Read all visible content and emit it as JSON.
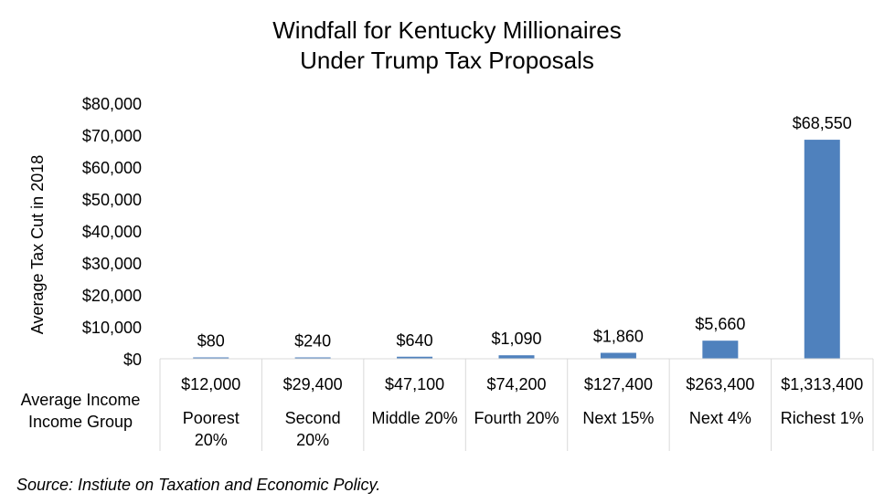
{
  "chart_data": {
    "type": "bar",
    "title": [
      "Windfall for Kentucky Millionaires",
      "Under Trump Tax Proposals"
    ],
    "ylabel": "Average Tax Cut in 2018",
    "ylim": [
      0,
      80000
    ],
    "yticks": [
      "$0",
      "$10,000",
      "$20,000",
      "$30,000",
      "$40,000",
      "$50,000",
      "$60,000",
      "$70,000",
      "$80,000"
    ],
    "bar_color": "#4f81bd",
    "categories": [
      "Poorest 20%",
      "Second 20%",
      "Middle 20%",
      "Fourth 20%",
      "Next 15%",
      "Next 4%",
      "Richest 1%"
    ],
    "values": [
      80,
      240,
      640,
      1090,
      1860,
      5660,
      68550
    ],
    "data_labels": [
      "$80",
      "$240",
      "$640",
      "$1,090",
      "$1,860",
      "$5,660",
      "$68,550"
    ],
    "table": {
      "row_headers": [
        "Average Income",
        "Income Group"
      ],
      "average_income": [
        "$12,000",
        "$29,400",
        "$47,100",
        "$74,200",
        "$127,400",
        "$263,400",
        "$1,313,400"
      ],
      "income_group": [
        [
          "Poorest",
          "20%"
        ],
        [
          "Second",
          "20%"
        ],
        [
          "Middle 20%"
        ],
        [
          "Fourth 20%"
        ],
        [
          "Next 15%"
        ],
        [
          "Next 4%"
        ],
        [
          "Richest 1%"
        ]
      ]
    }
  },
  "source": "Source: Instiute on Taxation and Economic Policy."
}
